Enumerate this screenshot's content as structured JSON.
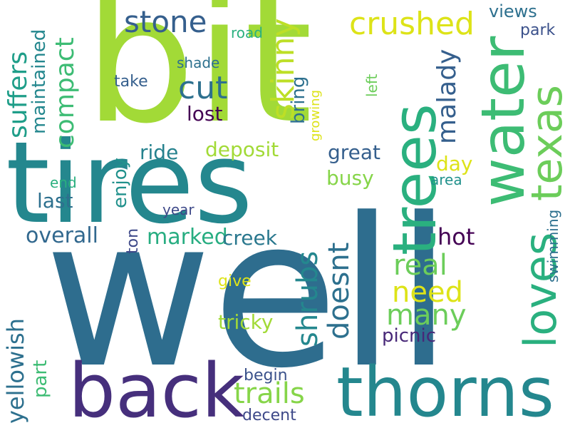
{
  "words": [
    {
      "text": "well",
      "color": "#2e6d8e"
    },
    {
      "text": "bit",
      "color": "#a2da37"
    },
    {
      "text": "tires",
      "color": "#24878e"
    },
    {
      "text": "back",
      "color": "#462f7c"
    },
    {
      "text": "thorns",
      "color": "#24878e"
    },
    {
      "text": "trees",
      "color": "#2ab07f"
    },
    {
      "text": "water",
      "color": "#3dbc74"
    },
    {
      "text": "loves",
      "color": "#2ab07f"
    },
    {
      "text": "texas",
      "color": "#6ccd5a"
    },
    {
      "text": "stone",
      "color": "#355f8d"
    },
    {
      "text": "crushed",
      "color": "#dde318"
    },
    {
      "text": "cut",
      "color": "#2d708e"
    },
    {
      "text": "skinny",
      "color": "#bddf26"
    },
    {
      "text": "suffers",
      "color": "#1f9e89"
    },
    {
      "text": "compact",
      "color": "#3dbc74"
    },
    {
      "text": "maintained",
      "color": "#24878e"
    },
    {
      "text": "malady",
      "color": "#355f8d"
    },
    {
      "text": "views",
      "color": "#2d708e"
    },
    {
      "text": "park",
      "color": "#3b518b"
    },
    {
      "text": "road",
      "color": "#2ab07f"
    },
    {
      "text": "shade",
      "color": "#2d708e"
    },
    {
      "text": "take",
      "color": "#355f8d"
    },
    {
      "text": "bring",
      "color": "#2d708e"
    },
    {
      "text": "growing",
      "color": "#dde318"
    },
    {
      "text": "left",
      "color": "#6ccd5a"
    },
    {
      "text": "lost",
      "color": "#440154"
    },
    {
      "text": "deposit",
      "color": "#a2da37"
    },
    {
      "text": "ride",
      "color": "#26828e"
    },
    {
      "text": "enjoy",
      "color": "#21918c"
    },
    {
      "text": "great",
      "color": "#355f8d"
    },
    {
      "text": "day",
      "color": "#dde318"
    },
    {
      "text": "busy",
      "color": "#86d549"
    },
    {
      "text": "area",
      "color": "#21918c"
    },
    {
      "text": "end",
      "color": "#2ab07f"
    },
    {
      "text": "last",
      "color": "#2d708e"
    },
    {
      "text": "year",
      "color": "#3e4989"
    },
    {
      "text": "overall",
      "color": "#31688e"
    },
    {
      "text": "marked",
      "color": "#27ad81"
    },
    {
      "text": "creek",
      "color": "#2a788e"
    },
    {
      "text": "ton",
      "color": "#3e4989"
    },
    {
      "text": "shrubs",
      "color": "#24878e"
    },
    {
      "text": "doesnt",
      "color": "#2d708e"
    },
    {
      "text": "real",
      "color": "#6ccd5a"
    },
    {
      "text": "hot",
      "color": "#440154"
    },
    {
      "text": "need",
      "color": "#dde318"
    },
    {
      "text": "many",
      "color": "#6ccd5a"
    },
    {
      "text": "swimming",
      "color": "#2d708e"
    },
    {
      "text": "yellowish",
      "color": "#2d708e"
    },
    {
      "text": "part",
      "color": "#3dbc74"
    },
    {
      "text": "give",
      "color": "#dde318"
    },
    {
      "text": "trails",
      "color": "#86d549"
    },
    {
      "text": "tricky",
      "color": "#a2da37"
    },
    {
      "text": "picnic",
      "color": "#482878"
    },
    {
      "text": "begin",
      "color": "#3b528b"
    },
    {
      "text": "decent",
      "color": "#3e4989"
    }
  ]
}
